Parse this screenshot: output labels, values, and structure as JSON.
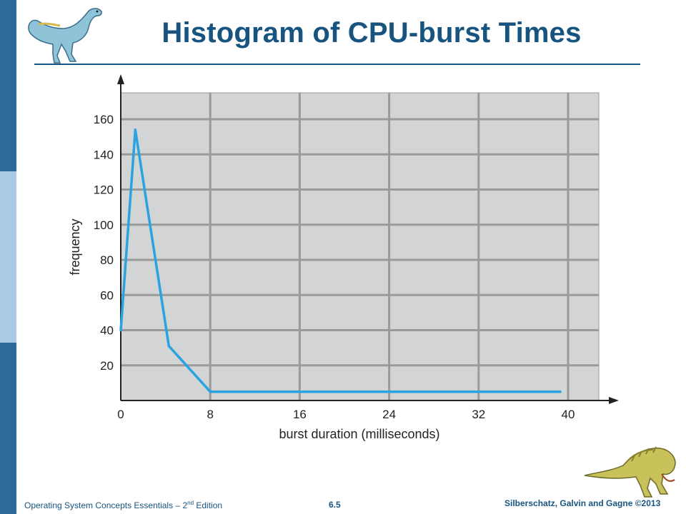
{
  "slide": {
    "title": "Histogram of CPU-burst Times",
    "footer_left_main": "Operating System Concepts Essentials – 2",
    "footer_left_sup": "nd",
    "footer_left_end": " Edition",
    "page_number": "6.5",
    "copyright": "Silberschatz, Galvin and Gagne ©2013",
    "colors": {
      "sidebar": "#2f6b9a",
      "sidebar_light": "#a9cbe6",
      "title": "#17547f",
      "plot_background": "#d3d4d6",
      "grid": "#9a9a9a",
      "line": "#29a3e1"
    },
    "icons": [
      "dinosaur-top-left-icon",
      "dinosaur-bottom-right-icon"
    ]
  },
  "chart_data": {
    "type": "line",
    "title": "",
    "xlabel": "burst duration (milliseconds)",
    "ylabel": "frequency",
    "xlim": [
      0,
      43
    ],
    "ylim": [
      0,
      170
    ],
    "x_ticks": [
      0,
      8,
      16,
      24,
      32,
      40
    ],
    "y_ticks": [
      20,
      40,
      60,
      80,
      100,
      120,
      140,
      160
    ],
    "grid": true,
    "series": [
      {
        "x": [
          0,
          1.3,
          4.3,
          8,
          39.3
        ],
        "y": [
          40,
          154,
          31,
          5,
          5
        ]
      }
    ]
  }
}
